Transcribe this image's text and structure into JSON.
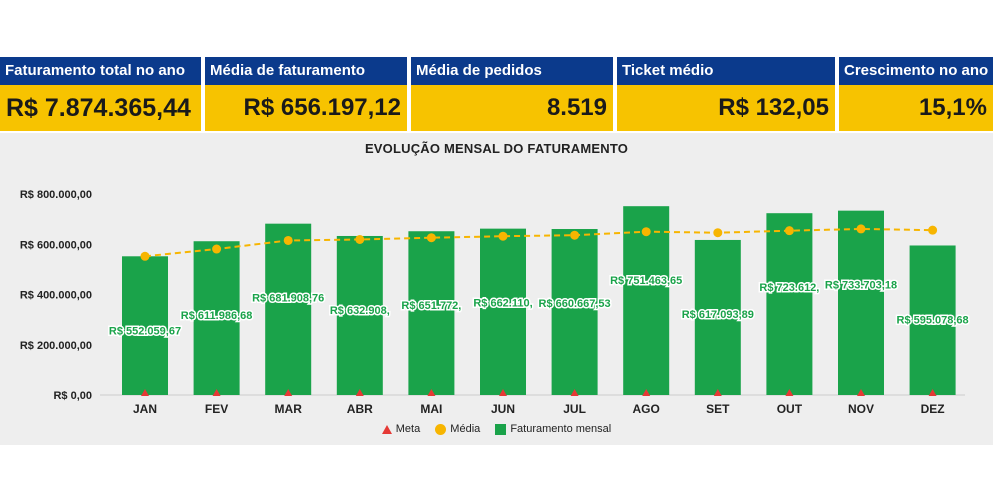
{
  "kpis": [
    {
      "label": "Faturamento total no ano",
      "value": "R$ 7.874.365,44"
    },
    {
      "label": "Média de faturamento",
      "value": "R$ 656.197,12"
    },
    {
      "label": "Média de pedidos",
      "value": "8.519"
    },
    {
      "label": "Ticket médio",
      "value": "R$ 132,05"
    },
    {
      "label": "Crescimento no ano",
      "value": "15,1%"
    }
  ],
  "colors": {
    "header_blue": "#0b3a8c",
    "value_yellow": "#f7c300",
    "bar_green": "#1aa34a",
    "media_orange": "#f7b500",
    "meta_red": "#e53935"
  },
  "chart_data": {
    "type": "bar",
    "title": "EVOLUÇÃO MENSAL DO FATURAMENTO",
    "categories": [
      "JAN",
      "FEV",
      "MAR",
      "ABR",
      "MAI",
      "JUN",
      "JUL",
      "AGO",
      "SET",
      "OUT",
      "NOV",
      "DEZ"
    ],
    "y_ticks": [
      "R$ 0,00",
      "R$ 200.000,00",
      "R$ 400.000,00",
      "R$ 600.000,00",
      "R$ 800.000,00"
    ],
    "ylim": [
      0,
      800000
    ],
    "series": [
      {
        "name": "Faturamento mensal",
        "type": "bar",
        "values": [
          552059.67,
          611986.68,
          681908.76,
          632908.0,
          651772.0,
          662110.0,
          660667.53,
          751463.65,
          617093.89,
          723612.0,
          733703.18,
          595078.68
        ],
        "labels": [
          "R$ 552.059,67",
          "R$ 611.986,68",
          "R$ 681.908,76",
          "R$ 632.908,",
          "R$ 651.772,",
          "R$ 662.110,",
          "R$ 660.667,53",
          "R$ 751.463,65",
          "R$ 617.093,89",
          "R$ 723.612,",
          "R$ 733.703,18",
          "R$ 595.078,68"
        ]
      },
      {
        "name": "Média",
        "type": "line",
        "values": [
          552000,
          581000,
          615000,
          619000,
          626000,
          632000,
          636000,
          650000,
          646000,
          654000,
          661000,
          656000
        ]
      },
      {
        "name": "Meta",
        "type": "marker",
        "values": [
          0,
          0,
          0,
          0,
          0,
          0,
          0,
          0,
          0,
          0,
          0,
          0
        ]
      }
    ],
    "legend_position": "bottom",
    "legend": [
      "Meta",
      "Média",
      "Faturamento mensal"
    ]
  }
}
